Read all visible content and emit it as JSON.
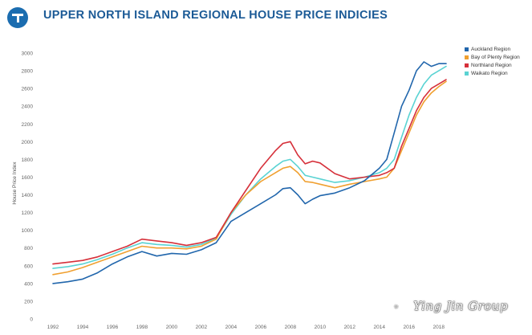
{
  "header": {
    "title": "UPPER NORTH ISLAND REGIONAL HOUSE PRICE INDICIES",
    "logo_icon": "t-logo-icon"
  },
  "watermark": {
    "text": "Ying Jin Group"
  },
  "chart_data": {
    "type": "line",
    "title": "UPPER NORTH ISLAND REGIONAL HOUSE PRICE INDICIES",
    "xlabel": "",
    "ylabel": "House Price Index",
    "xlim": [
      1992,
      2018.5
    ],
    "ylim": [
      0,
      3000
    ],
    "x_ticks": [
      1992,
      1994,
      1996,
      1998,
      2000,
      2002,
      2004,
      2006,
      2008,
      2010,
      2012,
      2014,
      2016,
      2018
    ],
    "y_ticks": [
      0,
      200,
      400,
      600,
      800,
      1000,
      1200,
      1400,
      1600,
      1800,
      2000,
      2200,
      2400,
      2600,
      2800,
      3000
    ],
    "grid": false,
    "legend_position": "top-right",
    "series": [
      {
        "name": "Auckland Region",
        "color": "#2166ac",
        "x": [
          1992,
          1993,
          1994,
          1995,
          1996,
          1997,
          1998,
          1999,
          2000,
          2001,
          2002,
          2003,
          2004,
          2005,
          2006,
          2007,
          2007.5,
          2008,
          2008.5,
          2009,
          2009.5,
          2010,
          2011,
          2012,
          2013,
          2014,
          2014.5,
          2015,
          2015.5,
          2016,
          2016.5,
          2017,
          2017.5,
          2018,
          2018.5
        ],
        "values": [
          400,
          420,
          450,
          520,
          620,
          700,
          760,
          710,
          740,
          730,
          780,
          860,
          1100,
          1200,
          1300,
          1400,
          1470,
          1480,
          1400,
          1300,
          1350,
          1390,
          1420,
          1480,
          1560,
          1700,
          1800,
          2100,
          2400,
          2580,
          2800,
          2900,
          2850,
          2880,
          2880
        ]
      },
      {
        "name": "Bay of Plenty Region",
        "color": "#f0a030",
        "x": [
          1992,
          1993,
          1994,
          1995,
          1996,
          1997,
          1998,
          1999,
          2000,
          2001,
          2002,
          2003,
          2004,
          2005,
          2006,
          2007,
          2007.5,
          2008,
          2008.5,
          2009,
          2009.5,
          2010,
          2011,
          2012,
          2013,
          2014,
          2014.5,
          2015,
          2015.5,
          2016,
          2016.5,
          2017,
          2017.5,
          2018,
          2018.5
        ],
        "values": [
          500,
          530,
          580,
          640,
          700,
          760,
          820,
          800,
          800,
          790,
          820,
          900,
          1200,
          1400,
          1550,
          1650,
          1700,
          1720,
          1650,
          1550,
          1540,
          1520,
          1480,
          1520,
          1550,
          1580,
          1600,
          1700,
          1900,
          2100,
          2300,
          2450,
          2550,
          2620,
          2680
        ]
      },
      {
        "name": "Northland Region",
        "color": "#d6303a",
        "x": [
          1992,
          1993,
          1994,
          1995,
          1996,
          1997,
          1998,
          1999,
          2000,
          2001,
          2002,
          2003,
          2004,
          2005,
          2006,
          2007,
          2007.5,
          2008,
          2008.5,
          2009,
          2009.5,
          2010,
          2011,
          2012,
          2013,
          2014,
          2014.5,
          2015,
          2015.5,
          2016,
          2016.5,
          2017,
          2017.5,
          2018,
          2018.5
        ],
        "values": [
          620,
          640,
          660,
          700,
          760,
          820,
          900,
          880,
          860,
          830,
          860,
          920,
          1200,
          1450,
          1700,
          1900,
          1980,
          2000,
          1850,
          1750,
          1780,
          1760,
          1640,
          1580,
          1600,
          1620,
          1650,
          1700,
          1950,
          2150,
          2350,
          2500,
          2600,
          2650,
          2700
        ]
      },
      {
        "name": "Waikato Region",
        "color": "#5ad3d3",
        "x": [
          1992,
          1993,
          1994,
          1995,
          1996,
          1997,
          1998,
          1999,
          2000,
          2001,
          2002,
          2003,
          2004,
          2005,
          2006,
          2007,
          2007.5,
          2008,
          2008.5,
          2009,
          2009.5,
          2010,
          2011,
          2012,
          2013,
          2014,
          2014.5,
          2015,
          2015.5,
          2016,
          2016.5,
          2017,
          2017.5,
          2018,
          2018.5
        ],
        "values": [
          570,
          590,
          620,
          670,
          730,
          800,
          860,
          840,
          830,
          810,
          840,
          910,
          1180,
          1400,
          1580,
          1720,
          1780,
          1800,
          1720,
          1620,
          1600,
          1580,
          1540,
          1560,
          1600,
          1650,
          1700,
          1800,
          2050,
          2300,
          2500,
          2650,
          2750,
          2800,
          2850
        ]
      }
    ]
  }
}
